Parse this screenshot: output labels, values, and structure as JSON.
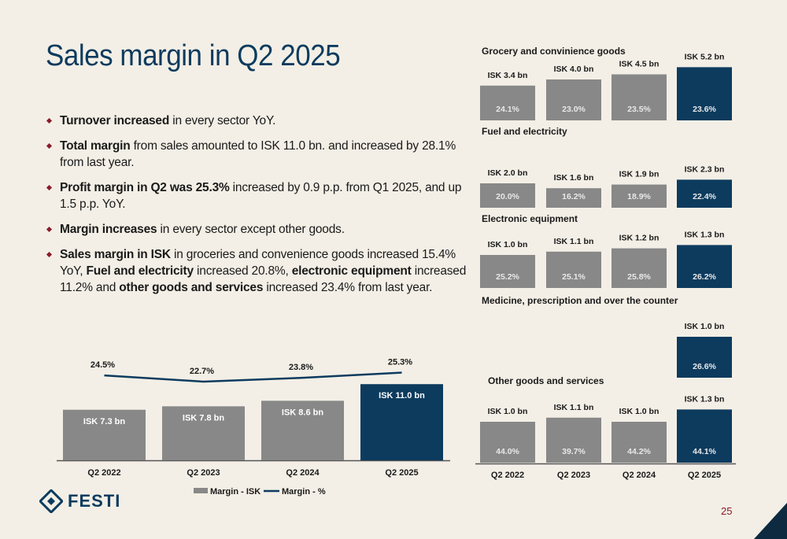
{
  "title": "Sales margin in Q2 2025",
  "bullets": [
    {
      "parts": [
        {
          "b": true,
          "t": "Turnover increased"
        },
        {
          "b": false,
          "t": " in every sector YoY."
        }
      ]
    },
    {
      "parts": [
        {
          "b": true,
          "t": "Total margin"
        },
        {
          "b": false,
          "t": " from sales amounted to ISK 11.0 bn. and increased by 28.1% from last year."
        }
      ]
    },
    {
      "parts": [
        {
          "b": true,
          "t": "Profit margin in Q2 was 25.3%"
        },
        {
          "b": false,
          "t": " increased by 0.9 p.p. from Q1 2025, and up 1.5 p.p. YoY."
        }
      ]
    },
    {
      "parts": [
        {
          "b": true,
          "t": "Margin increases"
        },
        {
          "b": false,
          "t": " in every sector except other goods."
        }
      ]
    },
    {
      "parts": [
        {
          "b": true,
          "t": "Sales margin in ISK"
        },
        {
          "b": false,
          "t": " in groceries and convenience goods increased 15.4% YoY, "
        },
        {
          "b": true,
          "t": "Fuel and electricity"
        },
        {
          "b": false,
          "t": " increased 20.8%, "
        },
        {
          "b": true,
          "t": "electronic equipment"
        },
        {
          "b": false,
          "t": " increased 11.2% and "
        },
        {
          "b": true,
          "t": "other goods and services"
        },
        {
          "b": false,
          "t": " increased 23.4% from last year."
        }
      ]
    }
  ],
  "colors": {
    "gray": "#888888",
    "navy": "#0d3b5e",
    "accent": "#8b1a2b"
  },
  "chart_data": [
    {
      "type": "bar",
      "categories": [
        "Q2 2022",
        "Q2 2023",
        "Q2 2024",
        "Q2 2025"
      ],
      "series": [
        {
          "name": "Margin - ISK",
          "values": [
            7.3,
            7.8,
            8.6,
            11.0
          ],
          "labels": [
            "ISK 7.3 bn",
            "ISK 7.8 bn",
            "ISK 8.6 bn",
            "ISK 11.0 bn"
          ]
        },
        {
          "name": "Margin - %",
          "type": "line",
          "values": [
            24.5,
            22.7,
            23.8,
            25.3
          ],
          "labels": [
            "24.5%",
            "22.7%",
            "23.8%",
            "25.3%"
          ]
        }
      ],
      "legend": "bottom"
    },
    {
      "type": "bar",
      "categories": [
        "Q2 2022",
        "Q2 2023",
        "Q2 2024",
        "Q2 2025"
      ],
      "panels": [
        {
          "title": "Grocery and convinience goods",
          "values": [
            3.4,
            4.0,
            4.5,
            5.2
          ],
          "labels": [
            "ISK 3.4 bn",
            "ISK 4.0 bn",
            "ISK 4.5 bn",
            "ISK 5.2 bn"
          ],
          "pct": [
            "24.1%",
            "23.0%",
            "23.5%",
            "23.6%"
          ]
        },
        {
          "title": "Fuel and electricity",
          "values": [
            2.0,
            1.6,
            1.9,
            2.3
          ],
          "labels": [
            "ISK 2.0 bn",
            "ISK 1.6 bn",
            "ISK 1.9 bn",
            "ISK 2.3 bn"
          ],
          "pct": [
            "20.0%",
            "16.2%",
            "18.9%",
            "22.4%"
          ]
        },
        {
          "title": "Electronic equipment",
          "values": [
            1.0,
            1.1,
            1.2,
            1.3
          ],
          "labels": [
            "ISK 1.0 bn",
            "ISK 1.1 bn",
            "ISK 1.2 bn",
            "ISK 1.3 bn"
          ],
          "pct": [
            "25.2%",
            "25.1%",
            "25.8%",
            "26.2%"
          ]
        },
        {
          "title": "Medicine, prescription and over the counter",
          "values": [
            null,
            null,
            null,
            1.0
          ],
          "labels": [
            "",
            "",
            "",
            "ISK 1.0 bn"
          ],
          "pct": [
            "",
            "",
            "",
            "26.6%"
          ]
        },
        {
          "title": "Other goods and services",
          "values": [
            1.0,
            1.1,
            1.0,
            1.3
          ],
          "labels": [
            "ISK 1.0 bn",
            "ISK 1.1 bn",
            "ISK 1.0 bn",
            "ISK 1.3 bn"
          ],
          "pct": [
            "44.0%",
            "39.7%",
            "44.2%",
            "44.1%"
          ]
        }
      ]
    }
  ],
  "logo": {
    "text": "FESTI"
  },
  "page_number": "25"
}
